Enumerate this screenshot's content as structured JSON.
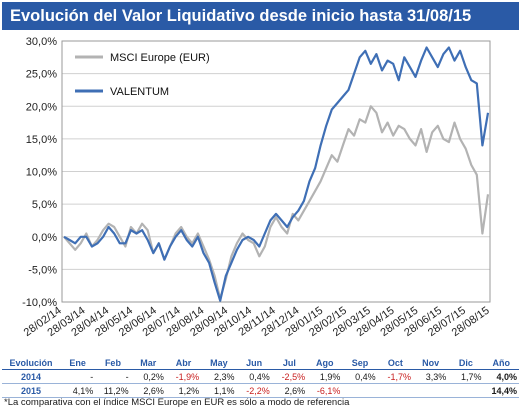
{
  "title": "Evolución del Valor Liquidativo desde inicio hasta 31/08/15",
  "footnote": "*La comparativa con el índice MSCI Europe en EUR es sólo a modo de referencia",
  "colors": {
    "title_bg": "#2a5aa6",
    "msci": "#b3b3b3",
    "valentum": "#3f6fb5",
    "negative": "#c81e1e"
  },
  "chart_data": {
    "type": "line",
    "title": "",
    "xlabel": "",
    "ylabel": "",
    "ylim": [
      -10,
      30
    ],
    "y_ticks": [
      "-10,0%",
      "-5,0%",
      "0,0%",
      "5,0%",
      "10,0%",
      "15,0%",
      "20,0%",
      "25,0%",
      "30,0%"
    ],
    "x_ticks": [
      "28/02/14",
      "28/03/14",
      "28/04/14",
      "28/05/14",
      "28/06/14",
      "28/07/14",
      "28/08/14",
      "28/09/14",
      "28/10/14",
      "28/11/14",
      "28/12/14",
      "28/01/15",
      "28/02/15",
      "28/03/15",
      "28/04/15",
      "28/05/15",
      "28/06/15",
      "28/07/15",
      "28/08/15"
    ],
    "grid": true,
    "legend": "top-left",
    "series": [
      {
        "name": "MSCI Europe (EUR)",
        "color": "#b3b3b3",
        "values": [
          0,
          -1.0,
          -2.0,
          -1.0,
          0.5,
          -1.5,
          -0.5,
          1.0,
          2.0,
          1.5,
          0.0,
          -1.5,
          1.5,
          0.5,
          2.0,
          1.0,
          -2.5,
          -1.0,
          -3.5,
          -1.5,
          0.5,
          1.5,
          0.0,
          -1.0,
          0.5,
          -1.5,
          -3.5,
          -6.0,
          -9.5,
          -6.5,
          -3.0,
          -1.0,
          0.5,
          -0.5,
          -1.0,
          -3.0,
          -1.5,
          1.5,
          3.0,
          1.5,
          0.5,
          3.5,
          2.5,
          4.0,
          5.5,
          7.0,
          8.5,
          10.5,
          12.5,
          11.5,
          14.0,
          16.5,
          15.5,
          18.0,
          17.5,
          20.0,
          19.0,
          16.0,
          17.5,
          15.5,
          17.0,
          16.5,
          15.0,
          14.0,
          16.5,
          13.0,
          16.0,
          17.0,
          15.0,
          14.5,
          17.5,
          15.0,
          13.5,
          11.0,
          9.5,
          0.5,
          6.5
        ]
      },
      {
        "name": "VALENTUM",
        "color": "#3f6fb5",
        "values": [
          0,
          -0.5,
          -1.0,
          0.0,
          0.0,
          -1.5,
          -1.0,
          0.0,
          1.5,
          0.5,
          -1.0,
          -1.0,
          1.0,
          0.5,
          1.0,
          -0.5,
          -2.5,
          -1.0,
          -3.5,
          -1.5,
          0.0,
          1.0,
          -0.5,
          -1.5,
          0.0,
          -2.5,
          -4.0,
          -7.0,
          -9.8,
          -6.0,
          -4.0,
          -2.0,
          -0.5,
          0.0,
          -0.5,
          -1.5,
          0.5,
          2.5,
          3.5,
          2.5,
          1.5,
          3.0,
          4.0,
          5.5,
          8.5,
          10.5,
          14.0,
          17.0,
          19.5,
          20.5,
          21.5,
          22.5,
          25.0,
          27.5,
          28.5,
          26.5,
          28.0,
          25.5,
          27.0,
          26.5,
          24.0,
          27.5,
          26.0,
          24.5,
          27.0,
          29.0,
          27.5,
          26.0,
          28.0,
          29.0,
          27.0,
          28.5,
          26.0,
          24.0,
          23.5,
          14.0,
          19.0
        ]
      }
    ]
  },
  "table": {
    "header": [
      "Evolución",
      "Ene",
      "Feb",
      "Mar",
      "Abr",
      "May",
      "Jun",
      "Jul",
      "Ago",
      "Sep",
      "Oct",
      "Nov",
      "Dic",
      "Año"
    ],
    "rows": [
      {
        "label": "2014",
        "cells": [
          "-",
          "-",
          "0,2%",
          "-1,9%",
          "2,3%",
          "0,4%",
          "-2,5%",
          "1,9%",
          "0,4%",
          "-1,7%",
          "3,3%",
          "1,7%",
          "4,0%"
        ]
      },
      {
        "label": "2015",
        "cells": [
          "4,1%",
          "11,2%",
          "2,6%",
          "1,2%",
          "1,1%",
          "-2,2%",
          "2,6%",
          "-6,1%",
          "",
          "",
          "",
          "",
          "14,4%"
        ]
      }
    ]
  }
}
